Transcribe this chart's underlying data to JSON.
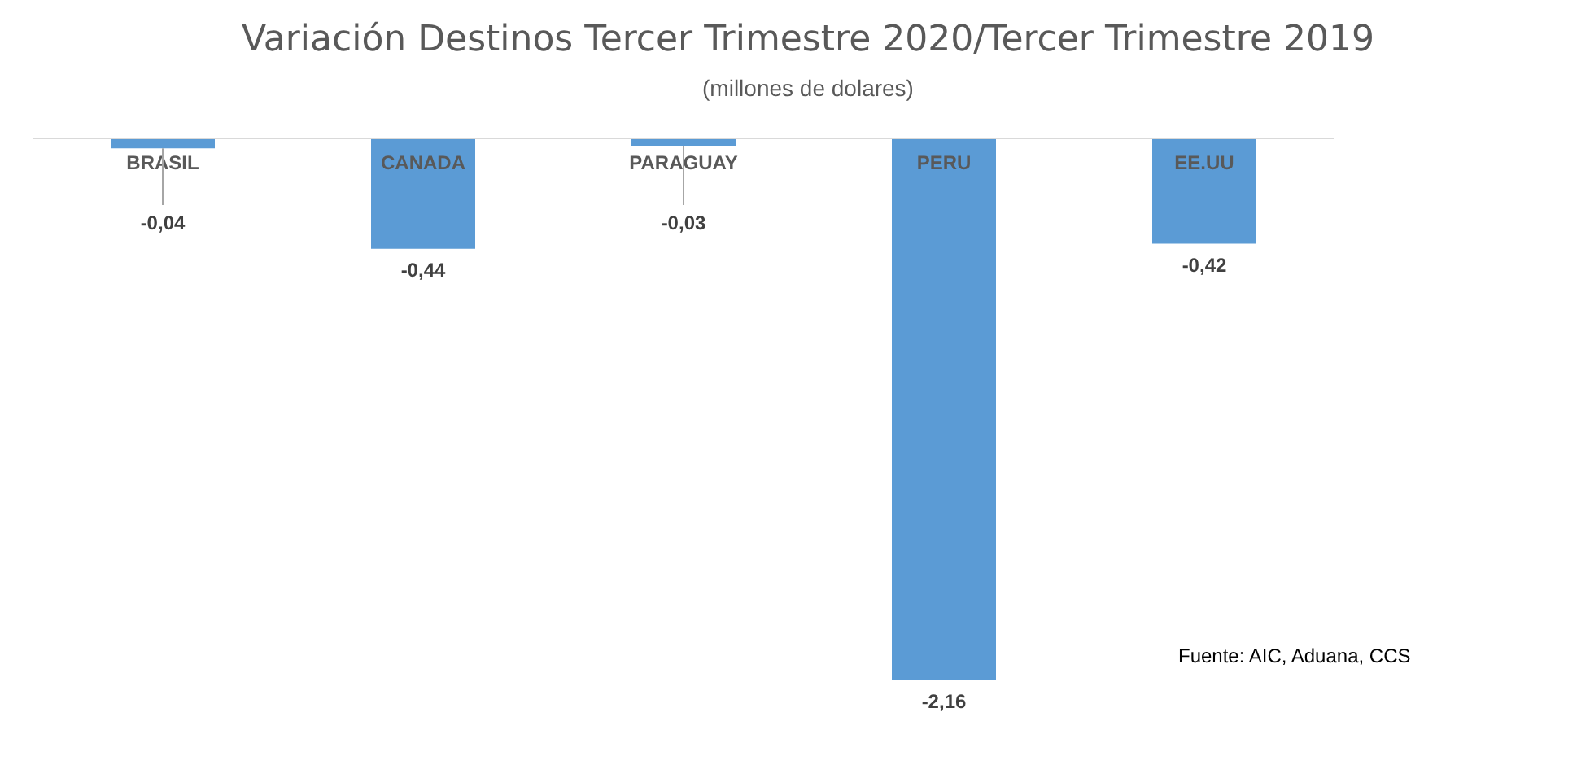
{
  "chart_data": {
    "type": "bar",
    "title": "Variación Destinos Tercer Trimestre 2020/Tercer Trimestre 2019",
    "subtitle": "(millones de dolares)",
    "categories": [
      "BRASIL",
      "CANADA",
      "PARAGUAY",
      "PERU",
      "EE.UU"
    ],
    "values": [
      -0.04,
      -0.44,
      -0.03,
      -2.16,
      -0.42
    ],
    "value_labels": [
      "-0,04",
      "-0,44",
      "-0,03",
      "-2,16",
      "-0,42"
    ],
    "color": "#5b9bd5",
    "annotations": [
      "Fuente: AIC, Aduana, CCS"
    ]
  }
}
